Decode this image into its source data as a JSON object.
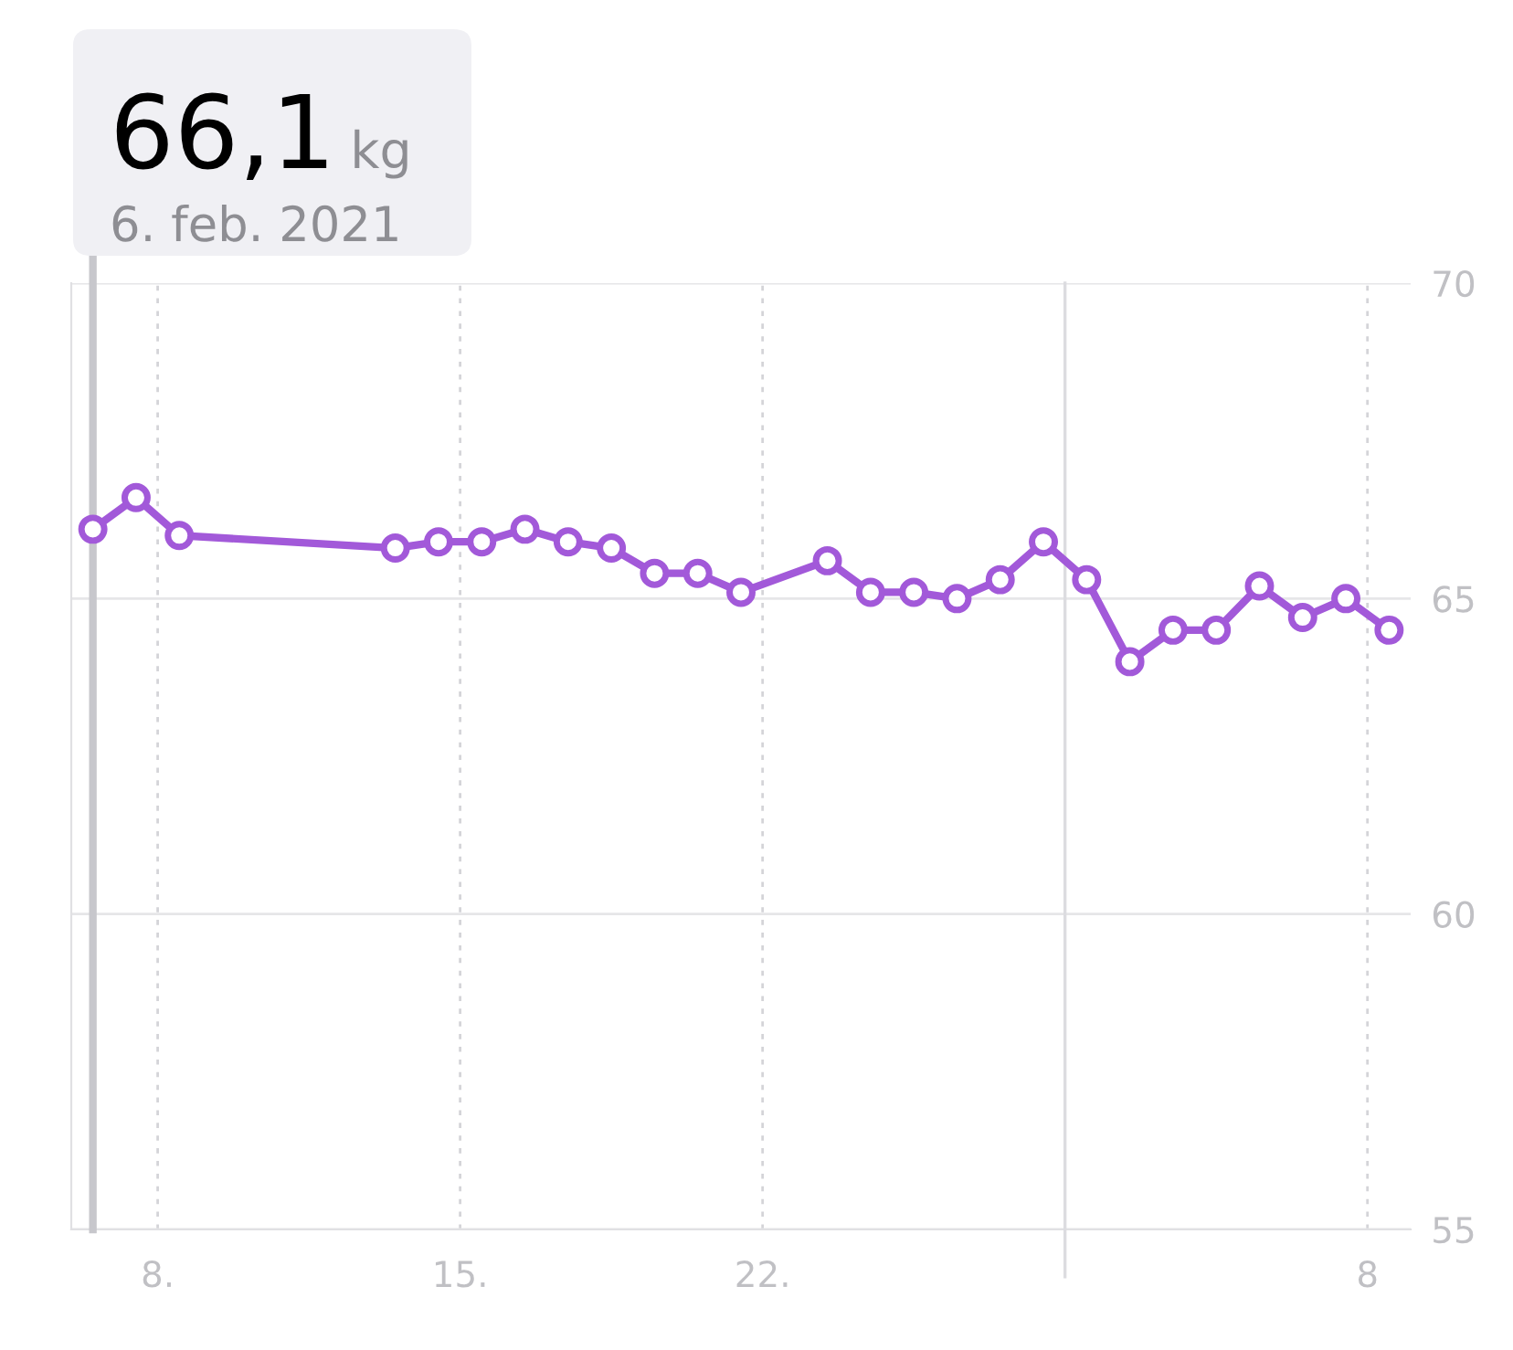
{
  "chart_data": {
    "type": "line",
    "x": [
      "2021-02-06T12:00",
      "2021-02-07T12:00",
      "2021-02-08T12:00",
      "2021-02-13T12:00",
      "2021-02-14T12:00",
      "2021-02-15T12:00",
      "2021-02-16T12:00",
      "2021-02-17T12:00",
      "2021-02-18T12:00",
      "2021-02-19T12:00",
      "2021-02-20T12:00",
      "2021-02-21T12:00",
      "2021-02-23T12:00",
      "2021-02-24T12:00",
      "2021-02-25T12:00",
      "2021-02-26T12:00",
      "2021-02-27T12:00",
      "2021-02-28T12:00",
      "2021-03-01T12:00",
      "2021-03-02T12:00",
      "2021-03-03T12:00",
      "2021-03-04T12:00",
      "2021-03-05T12:00",
      "2021-03-06T12:00",
      "2021-03-07T12:00",
      "2021-03-08T12:00"
    ],
    "series": [
      {
        "color": "#a259d9",
        "values": [
          66.1,
          66.6,
          66.0,
          65.8,
          65.9,
          65.9,
          66.1,
          65.9,
          65.8,
          65.4,
          65.4,
          65.1,
          65.6,
          65.1,
          65.1,
          65.0,
          65.3,
          65.9,
          65.3,
          64.0,
          64.5,
          64.5,
          65.2,
          64.7,
          65.0,
          64.5
        ]
      }
    ],
    "marker": "circle",
    "line_style": "solid",
    "xlim": [
      "2021-02-06",
      "2021-03-09"
    ],
    "xticks": [
      {
        "value": "2021-02-08",
        "label": "8."
      },
      {
        "value": "2021-02-15",
        "label": "15."
      },
      {
        "value": "2021-02-22",
        "label": "22."
      },
      {
        "value": "2021-03-08",
        "label": "8"
      }
    ],
    "ylim": [
      55,
      70
    ],
    "yticks": [
      55,
      60,
      65,
      70
    ],
    "grid": true,
    "ref_lines": [
      {
        "axis": "x",
        "value": "2021-02-06T12:00",
        "color": "#c7c7cc"
      },
      {
        "axis": "x",
        "value": "2021-03-01",
        "color": "#dcdce0"
      }
    ],
    "annotations": [
      "66,1 kg",
      "6. feb. 2021"
    ]
  }
}
